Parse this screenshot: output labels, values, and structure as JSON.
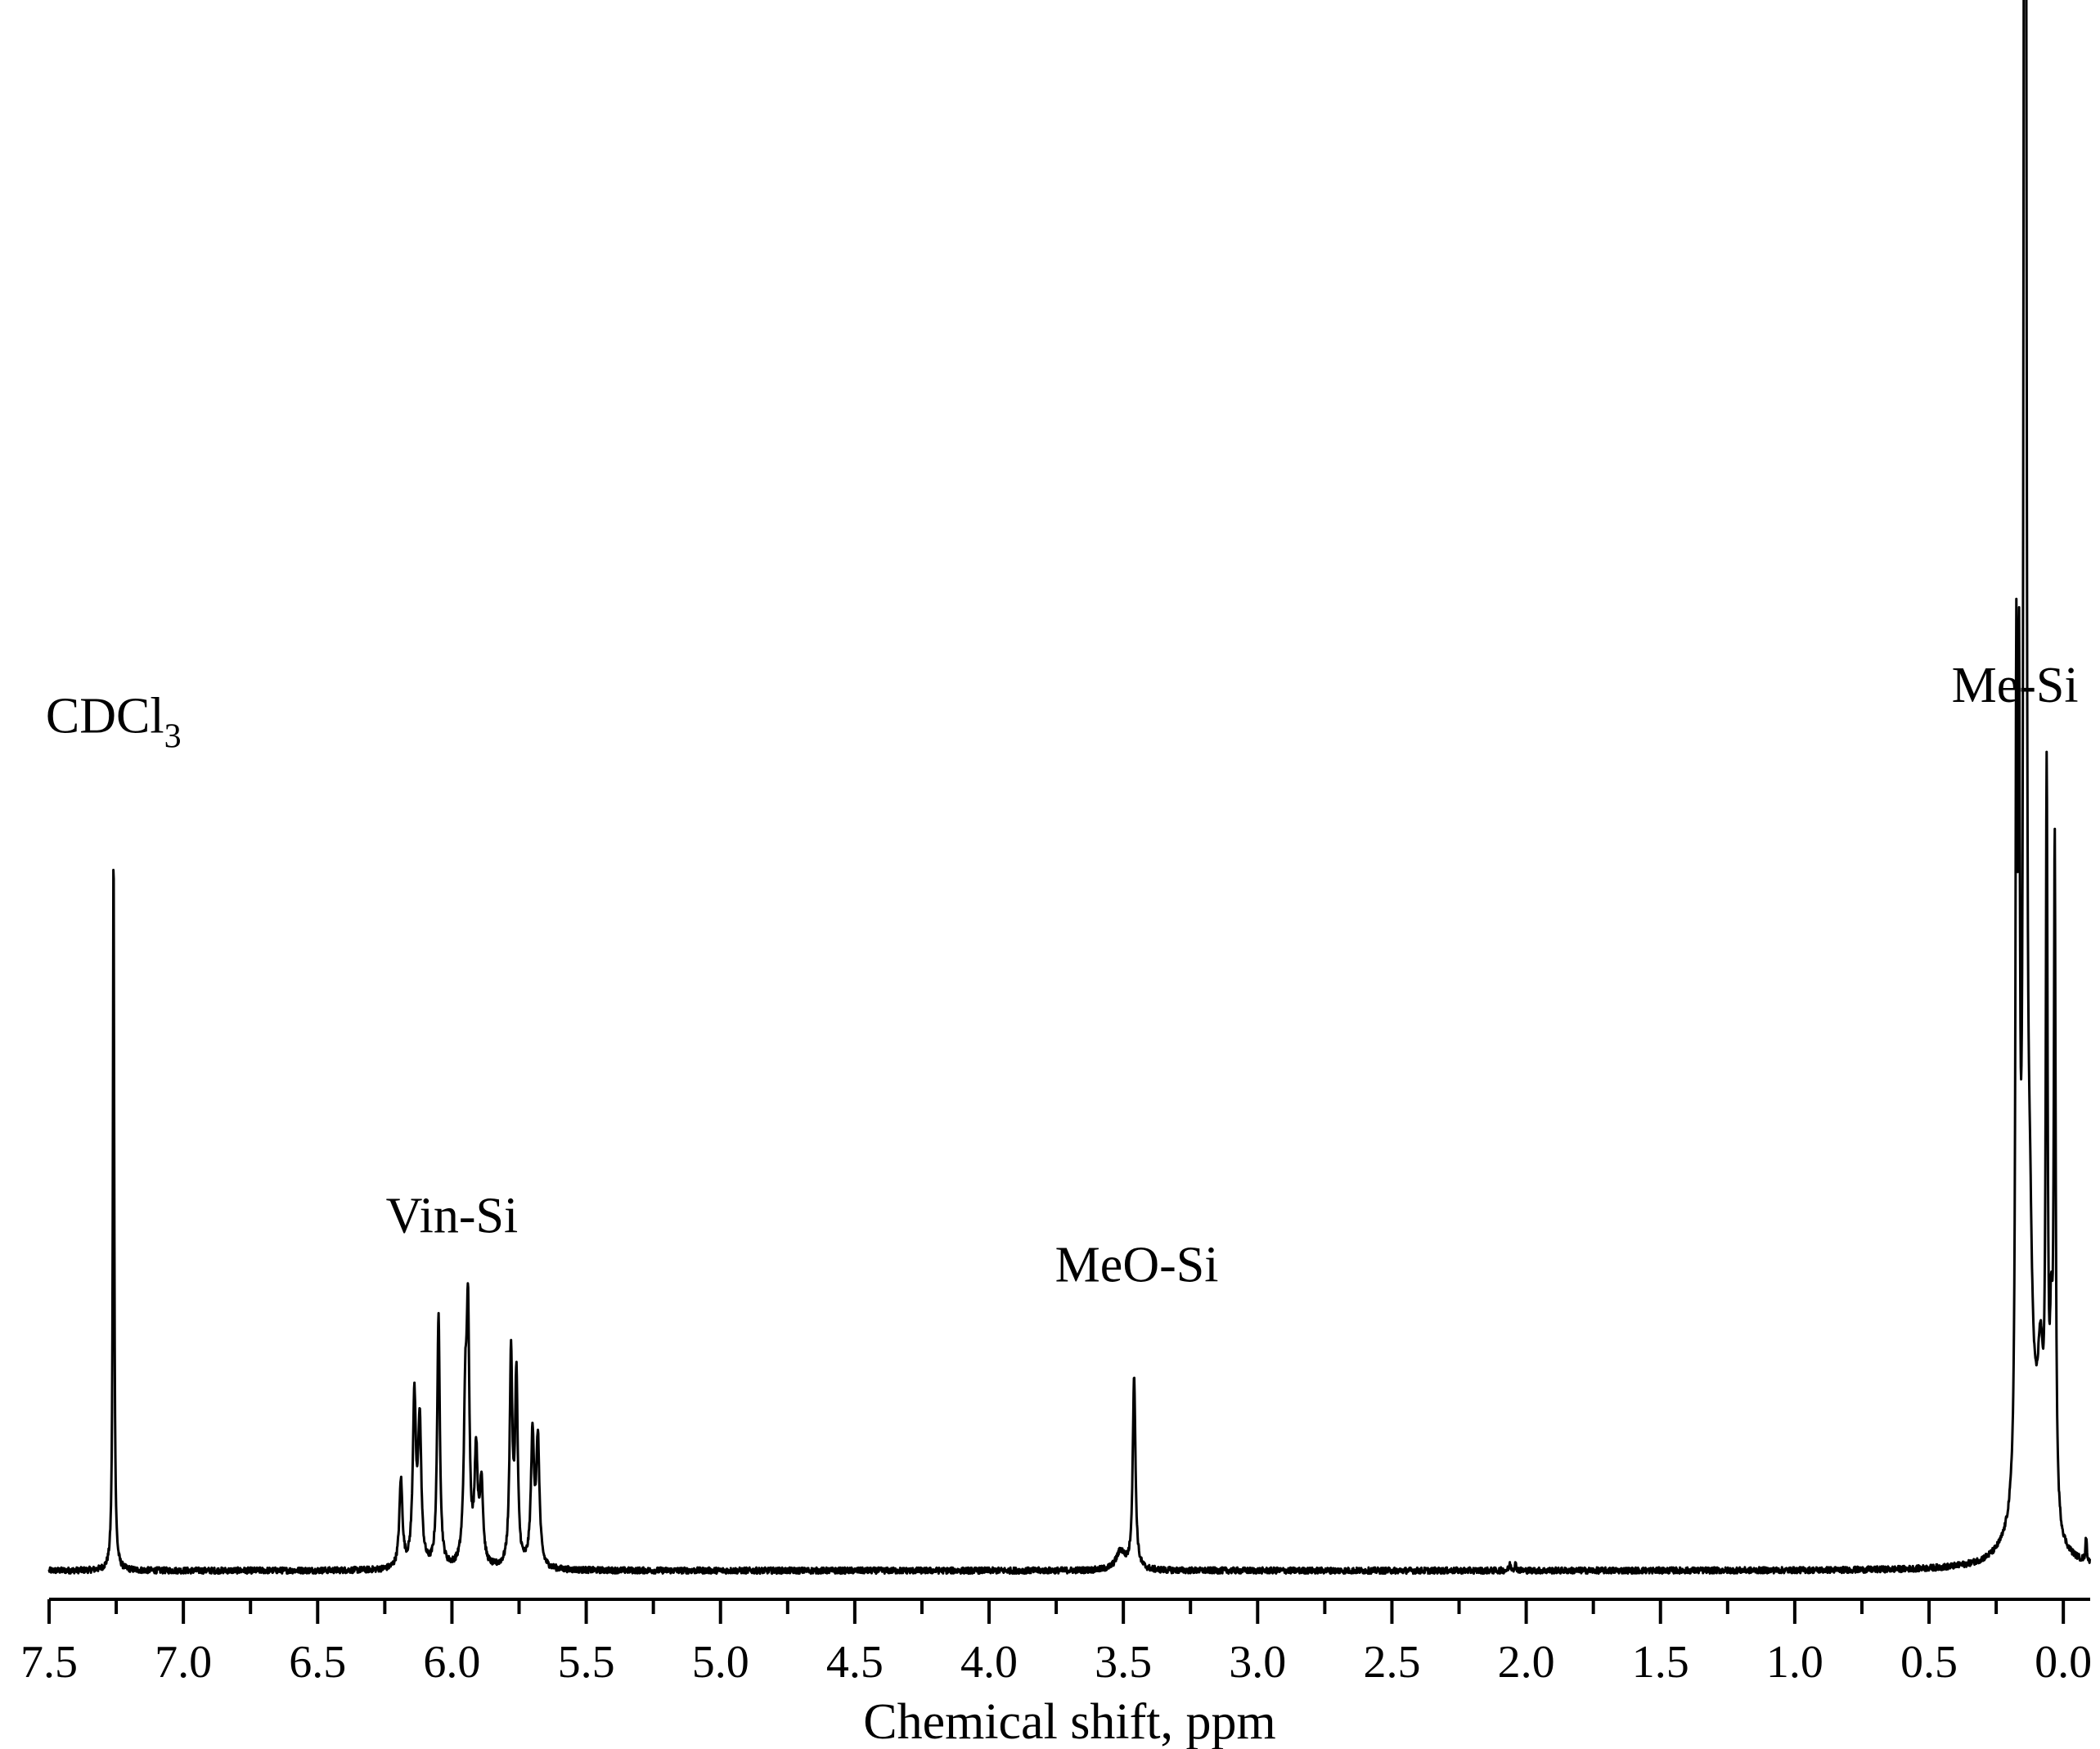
{
  "chart_data": {
    "type": "line",
    "title": "",
    "xlabel": "Chemical shift, ppm",
    "ylabel": "",
    "xlim": [
      7.5,
      -0.1
    ],
    "x_reversed": true,
    "x_ticks": [
      "7.5",
      "7.0",
      "6.5",
      "6.0",
      "5.5",
      "5.0",
      "4.5",
      "4.0",
      "3.5",
      "3.0",
      "2.5",
      "2.0",
      "1.5",
      "1.0",
      "0.5",
      "0.0"
    ],
    "y_axis_visible": false,
    "grid": false,
    "baseline": 0.0,
    "annotations": [
      {
        "id": "cdcl3",
        "main": "CDCl",
        "sub": "3",
        "x": 7.26,
        "y": 0.545
      },
      {
        "id": "vinsi",
        "main": "Vin-Si",
        "sub": "",
        "x": 6.0,
        "y": 0.22
      },
      {
        "id": "meosi",
        "main": "MeO-Si",
        "sub": "",
        "x": 3.45,
        "y": 0.188
      },
      {
        "id": "mesi",
        "main": "Me-Si",
        "sub": "",
        "x": 0.18,
        "y": 0.565
      }
    ],
    "peaks": [
      {
        "x": 7.26,
        "y": 0.473,
        "w": 0.003
      },
      {
        "x": 6.19,
        "y": 0.057,
        "w": 0.007
      },
      {
        "x": 6.14,
        "y": 0.108,
        "w": 0.007
      },
      {
        "x": 6.12,
        "y": 0.093,
        "w": 0.007
      },
      {
        "x": 6.05,
        "y": 0.163,
        "w": 0.006
      },
      {
        "x": 5.95,
        "y": 0.098,
        "w": 0.007
      },
      {
        "x": 5.94,
        "y": 0.148,
        "w": 0.006
      },
      {
        "x": 5.91,
        "y": 0.072,
        "w": 0.007
      },
      {
        "x": 5.89,
        "y": 0.053,
        "w": 0.007
      },
      {
        "x": 5.78,
        "y": 0.137,
        "w": 0.006
      },
      {
        "x": 5.76,
        "y": 0.122,
        "w": 0.006
      },
      {
        "x": 5.7,
        "y": 0.084,
        "w": 0.007
      },
      {
        "x": 5.68,
        "y": 0.081,
        "w": 0.007
      },
      {
        "x": 3.51,
        "y": 0.012,
        "w": 0.02
      },
      {
        "x": 3.46,
        "y": 0.126,
        "w": 0.006
      },
      {
        "x": 2.06,
        "y": 0.004,
        "w": 0.004
      },
      {
        "x": 2.04,
        "y": 0.004,
        "w": 0.004
      },
      {
        "x": 0.175,
        "y": 0.5,
        "w": 0.004
      },
      {
        "x": 0.165,
        "y": 0.45,
        "w": 0.004
      },
      {
        "x": 0.145,
        "y": 1.0,
        "w": 0.004
      },
      {
        "x": 0.14,
        "y": 0.9,
        "w": 0.004
      },
      {
        "x": 0.125,
        "y": 0.11,
        "w": 0.01
      },
      {
        "x": 0.085,
        "y": 0.08,
        "w": 0.012
      },
      {
        "x": 0.062,
        "y": 0.46,
        "w": 0.004
      },
      {
        "x": 0.045,
        "y": 0.1,
        "w": 0.006
      },
      {
        "x": 0.032,
        "y": 0.432,
        "w": 0.004
      },
      {
        "x": 0.12,
        "y": 0.07,
        "w": 0.05
      },
      {
        "x": -0.085,
        "y": 0.016,
        "w": 0.003
      }
    ],
    "noise_amplitude": 0.002
  }
}
